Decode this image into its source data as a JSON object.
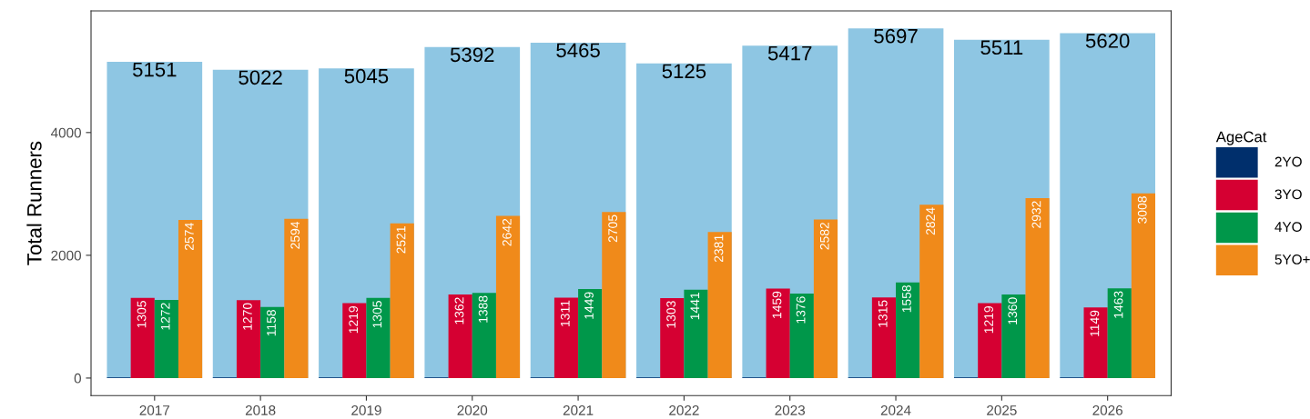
{
  "chart_data": {
    "type": "bar",
    "ylabel": "Total Runners",
    "legend_title": "AgeCat",
    "categories": [
      "2017",
      "2018",
      "2019",
      "2020",
      "2021",
      "2022",
      "2023",
      "2024",
      "2025",
      "2026"
    ],
    "ylim": [
      -285,
      5982
    ],
    "yticks": [
      0,
      2000,
      4000
    ],
    "grid": false,
    "legend": "right",
    "series": [
      {
        "color": "#8ec6e3",
        "values": [
          5151,
          5022,
          5045,
          5392,
          5465,
          5125,
          5417,
          5697,
          5511,
          5620
        ],
        "value_labels": [
          "5151",
          "5022",
          "5045",
          "5392",
          "5465",
          "5125",
          "5417",
          "5697",
          "5511",
          "5620"
        ]
      },
      {
        "name": "2YO",
        "color": "#002f6c",
        "values": [
          10,
          10,
          10,
          10,
          10,
          10,
          10,
          10,
          10,
          10
        ]
      },
      {
        "name": "3YO",
        "color": "#d50032",
        "values": [
          1305,
          1270,
          1219,
          1362,
          1311,
          1303,
          1459,
          1315,
          1219,
          1149
        ],
        "value_labels": [
          "1305",
          "1270",
          "1219",
          "1362",
          "1311",
          "1303",
          "1459",
          "1315",
          "1219",
          "1149"
        ]
      },
      {
        "name": "4YO",
        "color": "#00974a",
        "values": [
          1272,
          1158,
          1305,
          1388,
          1449,
          1441,
          1376,
          1558,
          1360,
          1463
        ],
        "value_labels": [
          "1272",
          "1158",
          "1305",
          "1388",
          "1449",
          "1441",
          "1376",
          "1558",
          "1360",
          "1463"
        ]
      },
      {
        "name": "5YO+",
        "color": "#f08a1a",
        "values": [
          2574,
          2594,
          2521,
          2642,
          2705,
          2381,
          2582,
          2824,
          2932,
          3008
        ],
        "value_labels": [
          "2574",
          "2594",
          "2521",
          "2642",
          "2705",
          "2381",
          "2582",
          "2824",
          "2932",
          "3008"
        ]
      }
    ]
  }
}
